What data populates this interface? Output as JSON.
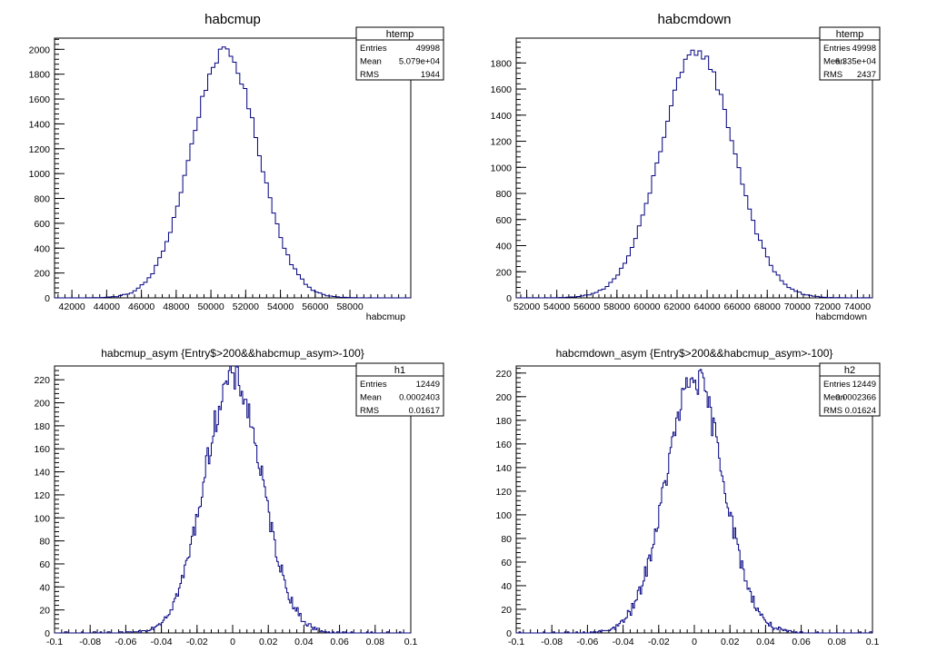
{
  "chart_data": [
    {
      "type": "histogram",
      "title": "habcmup",
      "xlabel": "habcmup",
      "ylabel": "",
      "xlim": [
        41000,
        61500
      ],
      "ylim": [
        0,
        2090
      ],
      "xticks": [
        42000,
        44000,
        46000,
        48000,
        50000,
        52000,
        54000,
        56000,
        58000
      ],
      "yticks": [
        0,
        200,
        400,
        600,
        800,
        1000,
        1200,
        1400,
        1600,
        1800,
        2000
      ],
      "line_color": "#000080",
      "stats": {
        "name": "htemp",
        "entries": "49998",
        "mean": "5.079e+04",
        "rms": "1944"
      },
      "series": [
        {
          "mean": 50790,
          "rms": 1944,
          "peak": 1980,
          "bins": 100
        }
      ]
    },
    {
      "type": "histogram",
      "title": "habcmdown",
      "xlabel": "habcmdown",
      "ylabel": "",
      "xlim": [
        51300,
        75000
      ],
      "ylim": [
        0,
        1990
      ],
      "xticks": [
        52000,
        54000,
        56000,
        58000,
        60000,
        62000,
        64000,
        66000,
        68000,
        70000,
        72000,
        74000
      ],
      "yticks": [
        0,
        200,
        400,
        600,
        800,
        1000,
        1200,
        1400,
        1600,
        1800
      ],
      "line_color": "#000080",
      "stats": {
        "name": "htemp",
        "entries": "49998",
        "mean": "6.335e+04",
        "rms": "2437"
      },
      "series": [
        {
          "mean": 63350,
          "rms": 2437,
          "peak": 1890,
          "bins": 100
        }
      ]
    },
    {
      "type": "histogram",
      "title": "habcmup_asym {Entry$>200&&habcmup_asym>-100}",
      "xlabel": "",
      "ylabel": "",
      "xlim": [
        -0.1,
        0.1
      ],
      "ylim": [
        0,
        232
      ],
      "xticks": [
        -0.1,
        -0.08,
        -0.06,
        -0.04,
        -0.02,
        0,
        0.02,
        0.04,
        0.06,
        0.08,
        0.1
      ],
      "yticks": [
        0,
        20,
        40,
        60,
        80,
        100,
        120,
        140,
        160,
        180,
        200,
        220
      ],
      "line_color": "#000080",
      "stats": {
        "name": "h1",
        "entries": "12449",
        "mean": "0.0002403",
        "rms": "0.01617"
      },
      "series": [
        {
          "mean": 0.00024,
          "rms": 0.01617,
          "peak": 222,
          "bins": 250
        }
      ]
    },
    {
      "type": "histogram",
      "title": "habcmdown_asym {Entry$>200&&habcmup_asym>-100}",
      "xlabel": "",
      "ylabel": "",
      "xlim": [
        -0.1,
        0.1
      ],
      "ylim": [
        0,
        226
      ],
      "xticks": [
        -0.1,
        -0.08,
        -0.06,
        -0.04,
        -0.02,
        0,
        0.02,
        0.04,
        0.06,
        0.08,
        0.1
      ],
      "yticks": [
        0,
        20,
        40,
        60,
        80,
        100,
        120,
        140,
        160,
        180,
        200,
        220
      ],
      "line_color": "#000080",
      "stats": {
        "name": "h2",
        "entries": "12449",
        "mean": "0.0002366",
        "rms": "0.01624"
      },
      "series": [
        {
          "mean": 0.00024,
          "rms": 0.01624,
          "peak": 215,
          "bins": 250
        }
      ]
    }
  ],
  "stats_labels": {
    "entries": "Entries",
    "mean": "Mean",
    "rms": "RMS"
  }
}
